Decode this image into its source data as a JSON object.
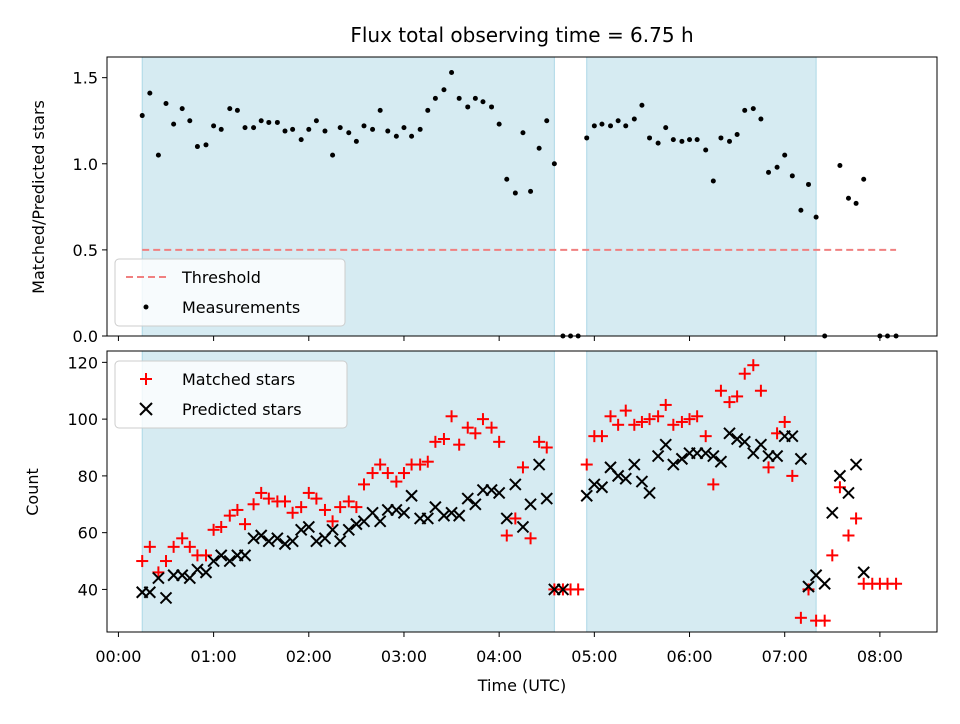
{
  "chart_data": {
    "type": "scatter",
    "title": "Flux total observing time = 6.75 h",
    "xlabel": "Time (UTC)",
    "x_ticks": [
      "00:00",
      "01:00",
      "02:00",
      "03:00",
      "04:00",
      "05:00",
      "06:00",
      "07:00",
      "08:00"
    ],
    "xlim_hours": [
      -0.12,
      8.6
    ],
    "shaded_intervals_hours": [
      [
        0.25,
        4.58
      ],
      [
        4.92,
        7.33
      ]
    ],
    "top": {
      "ylabel": "Matched/Predicted stars",
      "ylim": [
        0,
        1.62
      ],
      "y_ticks": [
        "0.0",
        "0.5",
        "1.0",
        "1.5"
      ],
      "legend": {
        "placement": "lower-left",
        "threshold_label": "Threshold",
        "measurements_label": "Measurements"
      },
      "threshold": {
        "value": 0.5,
        "x_range_hours": [
          0.25,
          8.17
        ],
        "color": "#f08080"
      },
      "measurements_color": "#000000",
      "measurements": [
        [
          0.25,
          1.28
        ],
        [
          0.33,
          1.41
        ],
        [
          0.42,
          1.05
        ],
        [
          0.5,
          1.35
        ],
        [
          0.58,
          1.23
        ],
        [
          0.67,
          1.32
        ],
        [
          0.75,
          1.25
        ],
        [
          0.83,
          1.1
        ],
        [
          0.92,
          1.11
        ],
        [
          1.0,
          1.22
        ],
        [
          1.08,
          1.2
        ],
        [
          1.17,
          1.32
        ],
        [
          1.25,
          1.31
        ],
        [
          1.33,
          1.21
        ],
        [
          1.42,
          1.21
        ],
        [
          1.5,
          1.25
        ],
        [
          1.58,
          1.24
        ],
        [
          1.67,
          1.24
        ],
        [
          1.75,
          1.19
        ],
        [
          1.83,
          1.2
        ],
        [
          1.92,
          1.14
        ],
        [
          2.0,
          1.2
        ],
        [
          2.08,
          1.25
        ],
        [
          2.17,
          1.19
        ],
        [
          2.25,
          1.05
        ],
        [
          2.33,
          1.21
        ],
        [
          2.42,
          1.18
        ],
        [
          2.5,
          1.13
        ],
        [
          2.58,
          1.22
        ],
        [
          2.67,
          1.2
        ],
        [
          2.75,
          1.31
        ],
        [
          2.83,
          1.19
        ],
        [
          2.92,
          1.16
        ],
        [
          3.0,
          1.21
        ],
        [
          3.08,
          1.16
        ],
        [
          3.17,
          1.2
        ],
        [
          3.25,
          1.31
        ],
        [
          3.33,
          1.38
        ],
        [
          3.42,
          1.43
        ],
        [
          3.5,
          1.53
        ],
        [
          3.58,
          1.38
        ],
        [
          3.67,
          1.33
        ],
        [
          3.75,
          1.38
        ],
        [
          3.83,
          1.36
        ],
        [
          3.92,
          1.33
        ],
        [
          4.0,
          1.23
        ],
        [
          4.08,
          0.91
        ],
        [
          4.17,
          0.83
        ],
        [
          4.25,
          1.18
        ],
        [
          4.33,
          0.84
        ],
        [
          4.42,
          1.09
        ],
        [
          4.5,
          1.25
        ],
        [
          4.58,
          1.0
        ],
        [
          4.67,
          0.0
        ],
        [
          4.75,
          0.0
        ],
        [
          4.83,
          0.0
        ],
        [
          4.92,
          1.15
        ],
        [
          5.0,
          1.22
        ],
        [
          5.08,
          1.23
        ],
        [
          5.17,
          1.22
        ],
        [
          5.25,
          1.25
        ],
        [
          5.33,
          1.22
        ],
        [
          5.42,
          1.26
        ],
        [
          5.5,
          1.34
        ],
        [
          5.58,
          1.15
        ],
        [
          5.67,
          1.12
        ],
        [
          5.75,
          1.21
        ],
        [
          5.83,
          1.14
        ],
        [
          5.92,
          1.13
        ],
        [
          6.0,
          1.14
        ],
        [
          6.08,
          1.14
        ],
        [
          6.17,
          1.08
        ],
        [
          6.25,
          0.9
        ],
        [
          6.33,
          1.15
        ],
        [
          6.42,
          1.13
        ],
        [
          6.5,
          1.17
        ],
        [
          6.58,
          1.31
        ],
        [
          6.67,
          1.32
        ],
        [
          6.75,
          1.26
        ],
        [
          6.83,
          0.95
        ],
        [
          6.92,
          0.98
        ],
        [
          7.0,
          1.05
        ],
        [
          7.08,
          0.93
        ],
        [
          7.17,
          0.73
        ],
        [
          7.25,
          0.88
        ],
        [
          7.33,
          0.69
        ],
        [
          7.42,
          0.0
        ],
        [
          7.58,
          0.99
        ],
        [
          7.67,
          0.8
        ],
        [
          7.75,
          0.77
        ],
        [
          7.83,
          0.91
        ],
        [
          8.0,
          0.0
        ],
        [
          8.08,
          0.0
        ],
        [
          8.17,
          0.0
        ]
      ]
    },
    "bottom": {
      "ylabel": "Count",
      "ylim": [
        25,
        124
      ],
      "y_ticks": [
        "40",
        "60",
        "80",
        "100",
        "120"
      ],
      "legend": {
        "placement": "upper-left"
      },
      "series": [
        {
          "name": "Matched stars",
          "marker": "plus",
          "color": "#ff0000",
          "points": [
            [
              0.25,
              50
            ],
            [
              0.33,
              55
            ],
            [
              0.42,
              46
            ],
            [
              0.5,
              50
            ],
            [
              0.58,
              55
            ],
            [
              0.67,
              58
            ],
            [
              0.75,
              55
            ],
            [
              0.83,
              52
            ],
            [
              0.92,
              52
            ],
            [
              1.0,
              61
            ],
            [
              1.08,
              62
            ],
            [
              1.17,
              66
            ],
            [
              1.25,
              68
            ],
            [
              1.33,
              63
            ],
            [
              1.42,
              70
            ],
            [
              1.5,
              74
            ],
            [
              1.58,
              72
            ],
            [
              1.67,
              71
            ],
            [
              1.75,
              71
            ],
            [
              1.83,
              67
            ],
            [
              1.92,
              69
            ],
            [
              2.0,
              74
            ],
            [
              2.08,
              72
            ],
            [
              2.17,
              68
            ],
            [
              2.25,
              64
            ],
            [
              2.33,
              69
            ],
            [
              2.42,
              71
            ],
            [
              2.5,
              69
            ],
            [
              2.58,
              77
            ],
            [
              2.67,
              81
            ],
            [
              2.75,
              84
            ],
            [
              2.83,
              81
            ],
            [
              2.92,
              78
            ],
            [
              3.0,
              81
            ],
            [
              3.08,
              84
            ],
            [
              3.17,
              84
            ],
            [
              3.25,
              85
            ],
            [
              3.33,
              92
            ],
            [
              3.42,
              93
            ],
            [
              3.5,
              101
            ],
            [
              3.58,
              91
            ],
            [
              3.67,
              97
            ],
            [
              3.75,
              95
            ],
            [
              3.83,
              100
            ],
            [
              3.92,
              97
            ],
            [
              4.0,
              92
            ],
            [
              4.08,
              59
            ],
            [
              4.17,
              65
            ],
            [
              4.25,
              83
            ],
            [
              4.33,
              58
            ],
            [
              4.42,
              92
            ],
            [
              4.5,
              90
            ],
            [
              4.58,
              40
            ],
            [
              4.67,
              40
            ],
            [
              4.75,
              40
            ],
            [
              4.83,
              40
            ],
            [
              4.92,
              84
            ],
            [
              5.0,
              94
            ],
            [
              5.08,
              94
            ],
            [
              5.17,
              101
            ],
            [
              5.25,
              98
            ],
            [
              5.33,
              103
            ],
            [
              5.42,
              98
            ],
            [
              5.5,
              99
            ],
            [
              5.58,
              100
            ],
            [
              5.67,
              101
            ],
            [
              5.75,
              105
            ],
            [
              5.83,
              98
            ],
            [
              5.92,
              99
            ],
            [
              6.0,
              100
            ],
            [
              6.08,
              101
            ],
            [
              6.17,
              94
            ],
            [
              6.25,
              77
            ],
            [
              6.33,
              110
            ],
            [
              6.42,
              106
            ],
            [
              6.5,
              108
            ],
            [
              6.58,
              116
            ],
            [
              6.67,
              119
            ],
            [
              6.75,
              110
            ],
            [
              6.83,
              83
            ],
            [
              6.92,
              95
            ],
            [
              7.0,
              99
            ],
            [
              7.08,
              80
            ],
            [
              7.17,
              30
            ],
            [
              7.25,
              40
            ],
            [
              7.33,
              29
            ],
            [
              7.42,
              29
            ],
            [
              7.5,
              52
            ],
            [
              7.58,
              76
            ],
            [
              7.67,
              59
            ],
            [
              7.75,
              65
            ],
            [
              7.83,
              42
            ],
            [
              7.92,
              42
            ],
            [
              8.0,
              42
            ],
            [
              8.08,
              42
            ],
            [
              8.17,
              42
            ]
          ]
        },
        {
          "name": "Predicted stars",
          "marker": "cross",
          "color": "#000000",
          "points": [
            [
              0.25,
              39
            ],
            [
              0.33,
              39
            ],
            [
              0.42,
              44
            ],
            [
              0.5,
              37
            ],
            [
              0.58,
              45
            ],
            [
              0.67,
              45
            ],
            [
              0.75,
              44
            ],
            [
              0.83,
              47
            ],
            [
              0.92,
              46
            ],
            [
              1.0,
              50
            ],
            [
              1.08,
              52
            ],
            [
              1.17,
              50
            ],
            [
              1.25,
              52
            ],
            [
              1.33,
              52
            ],
            [
              1.42,
              58
            ],
            [
              1.5,
              59
            ],
            [
              1.58,
              57
            ],
            [
              1.67,
              58
            ],
            [
              1.75,
              56
            ],
            [
              1.83,
              57
            ],
            [
              1.92,
              61
            ],
            [
              2.0,
              62
            ],
            [
              2.08,
              57
            ],
            [
              2.17,
              58
            ],
            [
              2.25,
              61
            ],
            [
              2.33,
              57
            ],
            [
              2.42,
              61
            ],
            [
              2.5,
              63
            ],
            [
              2.58,
              64
            ],
            [
              2.67,
              67
            ],
            [
              2.75,
              64
            ],
            [
              2.83,
              68
            ],
            [
              2.92,
              68
            ],
            [
              3.0,
              67
            ],
            [
              3.08,
              73
            ],
            [
              3.17,
              65
            ],
            [
              3.25,
              65
            ],
            [
              3.33,
              69
            ],
            [
              3.42,
              66
            ],
            [
              3.5,
              67
            ],
            [
              3.58,
              66
            ],
            [
              3.67,
              72
            ],
            [
              3.75,
              70
            ],
            [
              3.83,
              75
            ],
            [
              3.92,
              75
            ],
            [
              4.0,
              74
            ],
            [
              4.08,
              65
            ],
            [
              4.17,
              77
            ],
            [
              4.25,
              62
            ],
            [
              4.33,
              70
            ],
            [
              4.42,
              84
            ],
            [
              4.5,
              72
            ],
            [
              4.58,
              40
            ],
            [
              4.67,
              40
            ],
            [
              4.92,
              73
            ],
            [
              5.0,
              77
            ],
            [
              5.08,
              76
            ],
            [
              5.17,
              83
            ],
            [
              5.25,
              80
            ],
            [
              5.33,
              79
            ],
            [
              5.42,
              84
            ],
            [
              5.5,
              78
            ],
            [
              5.58,
              74
            ],
            [
              5.67,
              87
            ],
            [
              5.75,
              91
            ],
            [
              5.83,
              84
            ],
            [
              5.92,
              86
            ],
            [
              6.0,
              88
            ],
            [
              6.08,
              88
            ],
            [
              6.17,
              88
            ],
            [
              6.25,
              87
            ],
            [
              6.33,
              85
            ],
            [
              6.42,
              95
            ],
            [
              6.5,
              93
            ],
            [
              6.58,
              92
            ],
            [
              6.67,
              88
            ],
            [
              6.75,
              91
            ],
            [
              6.83,
              87
            ],
            [
              6.92,
              87
            ],
            [
              7.0,
              94
            ],
            [
              7.08,
              94
            ],
            [
              7.17,
              86
            ],
            [
              7.25,
              41
            ],
            [
              7.33,
              45
            ],
            [
              7.42,
              42
            ],
            [
              7.5,
              67
            ],
            [
              7.58,
              80
            ],
            [
              7.67,
              74
            ],
            [
              7.75,
              84
            ],
            [
              7.83,
              46
            ]
          ]
        }
      ]
    }
  }
}
